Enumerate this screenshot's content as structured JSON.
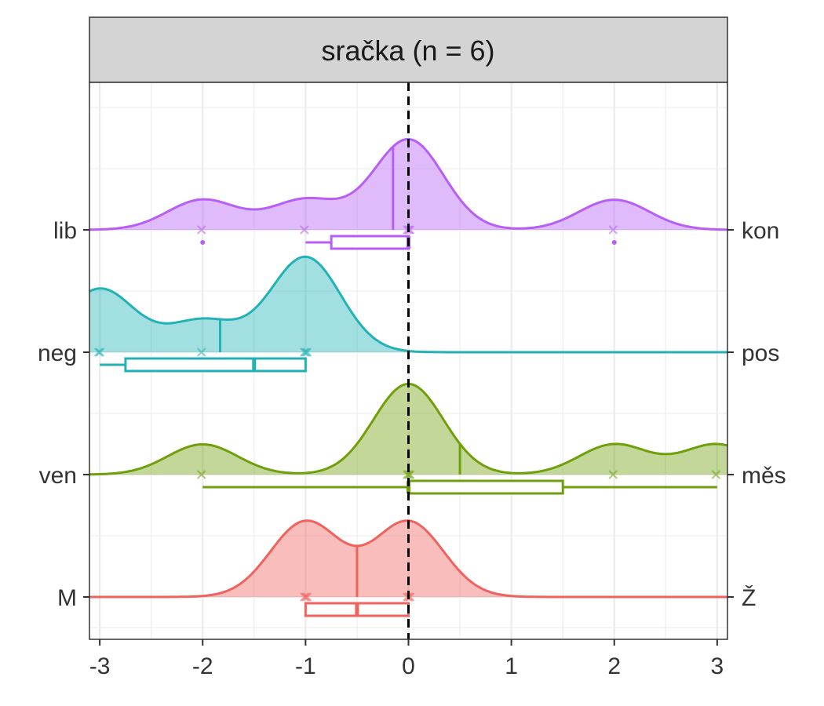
{
  "chart_data": {
    "type": "ridgeline-density-boxplot",
    "title": "sračka (n = 6)",
    "xlim": [
      -3.1,
      3.1
    ],
    "x_ticks": [
      -3,
      -2,
      -1,
      0,
      1,
      2,
      3
    ],
    "reference_line_x": 0,
    "grid": true,
    "rows": [
      {
        "left_label": "lib",
        "right_label": "kon",
        "color": "#B65EF5",
        "points": [
          -2,
          -1,
          0,
          0,
          0,
          2
        ],
        "median_line": -0.15,
        "box": {
          "min": -1,
          "q1": -0.75,
          "median": 0,
          "q3": 0,
          "max": 0
        },
        "outliers": [
          -2,
          2
        ],
        "density_peak_fraction": 0.95
      },
      {
        "left_label": "neg",
        "right_label": "pos",
        "color": "#22B2B6",
        "points": [
          -3,
          -3,
          -2,
          -1,
          -1,
          -1
        ],
        "median_line": -1.83,
        "box": {
          "min": -3,
          "q1": -2.75,
          "median": -1.5,
          "q3": -1,
          "max": -1
        },
        "outliers": [],
        "density_peak_fraction": 1.0
      },
      {
        "left_label": "ven",
        "right_label": "měs",
        "color": "#6FA00C",
        "points": [
          -2,
          0,
          0,
          0,
          2,
          3
        ],
        "median_line": 0.5,
        "box": {
          "min": -2,
          "q1": 0,
          "median": 0,
          "q3": 1.5,
          "max": 3
        },
        "outliers": [],
        "density_peak_fraction": 0.95
      },
      {
        "left_label": "M",
        "right_label": "Ž",
        "color": "#F0625E",
        "points": [
          -1,
          -1,
          -1,
          0,
          0,
          0
        ],
        "median_line": -0.5,
        "box": {
          "min": -1,
          "q1": -1,
          "median": -0.5,
          "q3": 0,
          "max": 0
        },
        "outliers": [],
        "density_peak_fraction": 0.8
      }
    ]
  }
}
